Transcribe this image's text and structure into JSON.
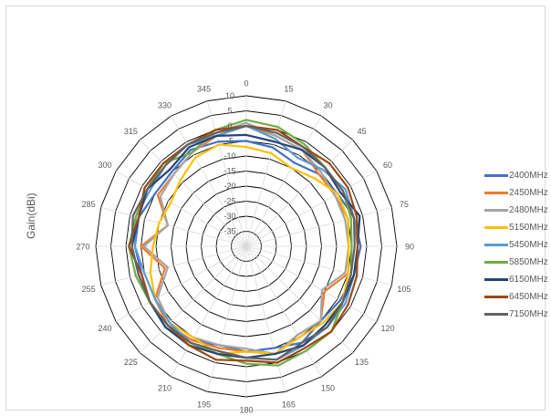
{
  "chart_data": {
    "type": "radar",
    "title": "",
    "ylabel": "Gain(dBi)",
    "angle_labels": [
      "0",
      "15",
      "30",
      "45",
      "60",
      "75",
      "90",
      "105",
      "120",
      "135",
      "150",
      "165",
      "180",
      "195",
      "210",
      "225",
      "240",
      "255",
      "270",
      "285",
      "300",
      "315",
      "330",
      "345"
    ],
    "radial_tick_labels": [
      "10",
      "5",
      "0",
      "-5",
      "-10",
      "-15",
      "-20",
      "-25",
      "-30",
      "-35"
    ],
    "rlim": [
      -40,
      10
    ],
    "grid": true,
    "legend_position": "right",
    "series": [
      {
        "name": "2400MHz",
        "color": "#4472c4",
        "values": [
          -5,
          -6,
          -8,
          -6,
          -5,
          -3,
          -2,
          -3,
          -4,
          -5,
          -3,
          -5,
          -5,
          -6,
          -4,
          -3,
          -3,
          -4,
          -3,
          -3,
          -5,
          -5,
          -3,
          -4
        ]
      },
      {
        "name": "2450MHz",
        "color": "#ed7d31",
        "values": [
          0,
          -2,
          -3,
          -6,
          -6,
          -5,
          -6,
          -5,
          -10,
          -5,
          -6,
          -3,
          -5,
          -5,
          -4,
          -3,
          -5,
          -12,
          -5,
          -13,
          -6,
          -6,
          -4,
          -2
        ]
      },
      {
        "name": "2480MHz",
        "color": "#a5a5a5",
        "values": [
          1,
          -2,
          -3,
          -5,
          -6,
          -6,
          -6,
          -6,
          -11,
          -5,
          -6,
          -3,
          -6,
          -6,
          -5,
          -4,
          -6,
          -13,
          -6,
          -13,
          -7,
          -6,
          -4,
          -1
        ]
      },
      {
        "name": "5150MHz",
        "color": "#ffc000",
        "values": [
          -7,
          -8,
          -10,
          -8,
          -5,
          -5,
          -6,
          -5,
          -3,
          -4,
          -5,
          -3,
          -5,
          -3,
          -5,
          -4,
          -5,
          -7,
          -9,
          -10,
          -11,
          -9,
          -6,
          -5
        ]
      },
      {
        "name": "5450MHz",
        "color": "#5b9bd5",
        "values": [
          0,
          -3,
          -6,
          -4,
          -2,
          -3,
          -3,
          -3,
          -2,
          -2,
          -2,
          -1,
          -3,
          -3,
          -3,
          -4,
          -5,
          -5,
          -3,
          -2,
          -3,
          -2,
          -1,
          -2
        ]
      },
      {
        "name": "5850MHz",
        "color": "#70ad47",
        "values": [
          2,
          1,
          -1,
          -3,
          -3,
          -4,
          -5,
          -4,
          -3,
          0,
          0,
          1,
          -1,
          -3,
          -3,
          -2,
          -3,
          -2,
          -1,
          -2,
          -2,
          -1,
          -4,
          0
        ]
      },
      {
        "name": "6150MHz",
        "color": "#264478",
        "values": [
          -3,
          -4,
          -3,
          -3,
          -4,
          -1,
          -3,
          -3,
          -3,
          -3,
          -2,
          -3,
          -3,
          -3,
          -2,
          -2,
          -3,
          -3,
          -2,
          -3,
          -2,
          -4,
          -2,
          -2
        ]
      },
      {
        "name": "6450MHz",
        "color": "#9e480e",
        "values": [
          0,
          0,
          -2,
          -1,
          -1,
          -2,
          -3,
          -2,
          -1,
          0,
          -1,
          0,
          -2,
          -1,
          -2,
          -3,
          -3,
          -4,
          -1,
          -3,
          -1,
          -1,
          -1,
          0
        ]
      },
      {
        "name": "7150MHz",
        "color": "#636363",
        "values": [
          0,
          -1,
          -2,
          -3,
          -3,
          -3,
          -4,
          -4,
          -3,
          -2,
          -3,
          -1,
          -3,
          -4,
          -3,
          -3,
          -3,
          -3,
          -2,
          -1,
          -2,
          -2,
          -1,
          -1
        ]
      }
    ]
  }
}
